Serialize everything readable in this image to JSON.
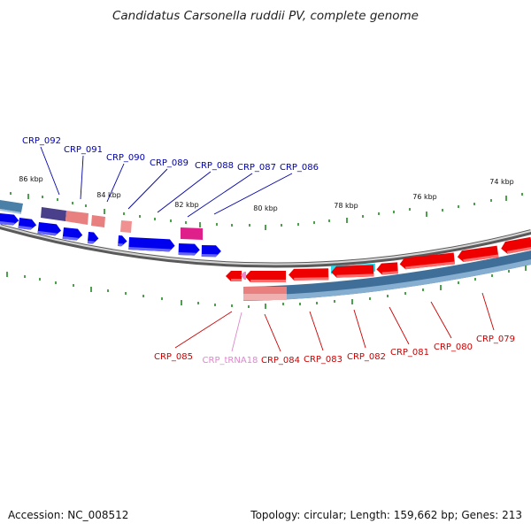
{
  "title": "Candidatus Carsonella ruddii PV, complete genome",
  "footer": {
    "accession": "Accession: NC_008512",
    "summary": "Topology: circular; Length: 159,662 bp; Genes: 213"
  },
  "kbp_labels": [
    "86 kbp",
    "84 kbp",
    "82 kbp",
    "80 kbp",
    "78 kbp",
    "76 kbp",
    "74 kbp"
  ],
  "upper_genes": [
    "CRP_092",
    "CRP_091",
    "CRP_090",
    "CRP_089",
    "CRP_088",
    "CRP_087",
    "CRP_086"
  ],
  "lower_genes": [
    "CRP_085",
    "CRP_tRNA18",
    "CRP_084",
    "CRP_083",
    "CRP_082",
    "CRP_081",
    "CRP_080",
    "CRP_079"
  ],
  "colors": {
    "forward_gene": "#0000ee",
    "reverse_gene": "#ee0000",
    "trna": "#ee88cc",
    "label_forward": "#0000aa",
    "label_reverse": "#cc0000",
    "label_trna": "#dd88cc",
    "tick": "#228822",
    "backbone": "#888888",
    "steelblue": "#4a7fa8"
  }
}
